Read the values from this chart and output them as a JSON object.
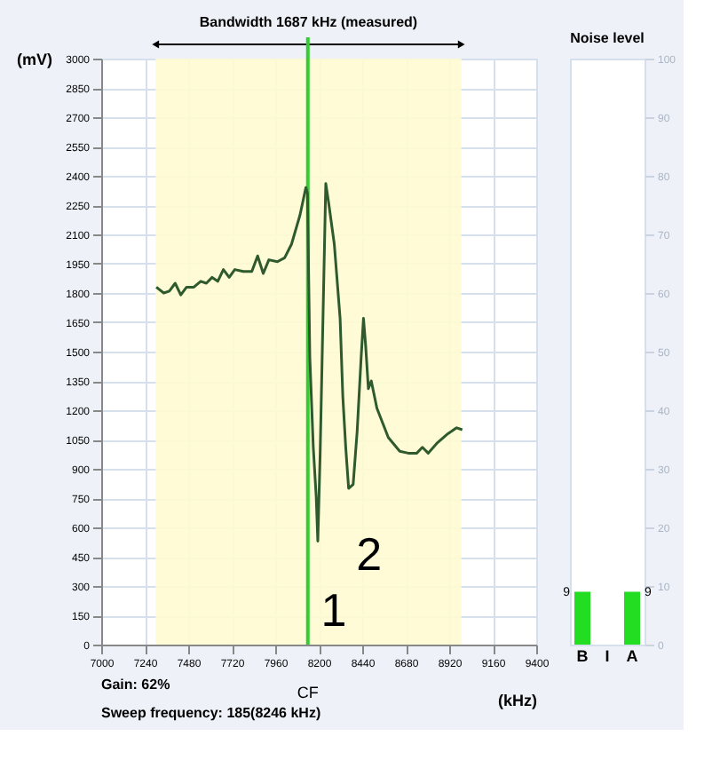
{
  "chart_data": [
    {
      "type": "line",
      "xlabel": "(kHz)",
      "ylabel": "(mV)",
      "x": [
        7304,
        7345,
        7376,
        7408,
        7439,
        7471,
        7511,
        7549,
        7580,
        7612,
        7643,
        7674,
        7706,
        7737,
        7784,
        7831,
        7863,
        7894,
        7925,
        7972,
        8012,
        8050,
        8097,
        8129,
        8138,
        8151,
        8170,
        8186,
        8195,
        8208,
        8239,
        8255,
        8286,
        8318,
        8333,
        8349,
        8365,
        8390,
        8412,
        8434,
        8447,
        8459,
        8474,
        8490,
        8521,
        8584,
        8647,
        8694,
        8741,
        8772,
        8804,
        8851,
        8913,
        8961,
        8992
      ],
      "series": [
        {
          "color": "#2e5a2e",
          "values": [
            1830,
            1800,
            1810,
            1850,
            1790,
            1830,
            1830,
            1860,
            1850,
            1880,
            1860,
            1920,
            1880,
            1920,
            1910,
            1910,
            1990,
            1900,
            1970,
            1960,
            1980,
            2050,
            2200,
            2340,
            2310,
            1470,
            1010,
            760,
            530,
            980,
            2360,
            2260,
            2050,
            1670,
            1270,
            1010,
            800,
            820,
            1090,
            1470,
            1670,
            1530,
            1310,
            1350,
            1210,
            1060,
            990,
            980,
            980,
            1010,
            980,
            1030,
            1080,
            1110,
            1100
          ]
        }
      ],
      "xlim": [
        7000,
        9400
      ],
      "xticks": [
        7000,
        7240,
        7480,
        7720,
        7960,
        8200,
        8440,
        8680,
        8920,
        9160,
        9400
      ],
      "ylim": [
        0,
        3000
      ],
      "yticks": [
        0,
        150,
        300,
        450,
        600,
        750,
        900,
        1050,
        1200,
        1350,
        1500,
        1650,
        1800,
        1950,
        2100,
        2250,
        2400,
        2550,
        2700,
        2850,
        3000
      ],
      "grid": true,
      "marker": "none",
      "line_style": "solid",
      "bands": [
        {
          "axis": "x",
          "from": 7300,
          "to": 8987,
          "label": "Bandwidth 1687 kHz (measured)",
          "color": "#fffbd2"
        }
      ],
      "ref_lines": [
        {
          "axis": "x",
          "value": 8140,
          "label": "CF",
          "color": "#33cc33"
        }
      ],
      "annotations": [
        {
          "text": "1",
          "x": 8195,
          "y": 530
        },
        {
          "text": "2",
          "x": 8390,
          "y": 820
        },
        "Gain: 62%",
        "Sweep frequency: 185(8246 kHz)"
      ]
    },
    {
      "type": "bar",
      "title": "Noise level",
      "categories": [
        "B",
        "I",
        "A"
      ],
      "values": [
        9,
        null,
        9
      ],
      "colors": [
        "#22dd22",
        "#22dd22",
        "#22dd22"
      ],
      "value_labels": [
        "9",
        null,
        "9"
      ],
      "ylim": [
        0,
        100
      ],
      "yticks": [
        0,
        10,
        20,
        30,
        40,
        50,
        60,
        70,
        80,
        90,
        100
      ],
      "grid": false
    }
  ]
}
